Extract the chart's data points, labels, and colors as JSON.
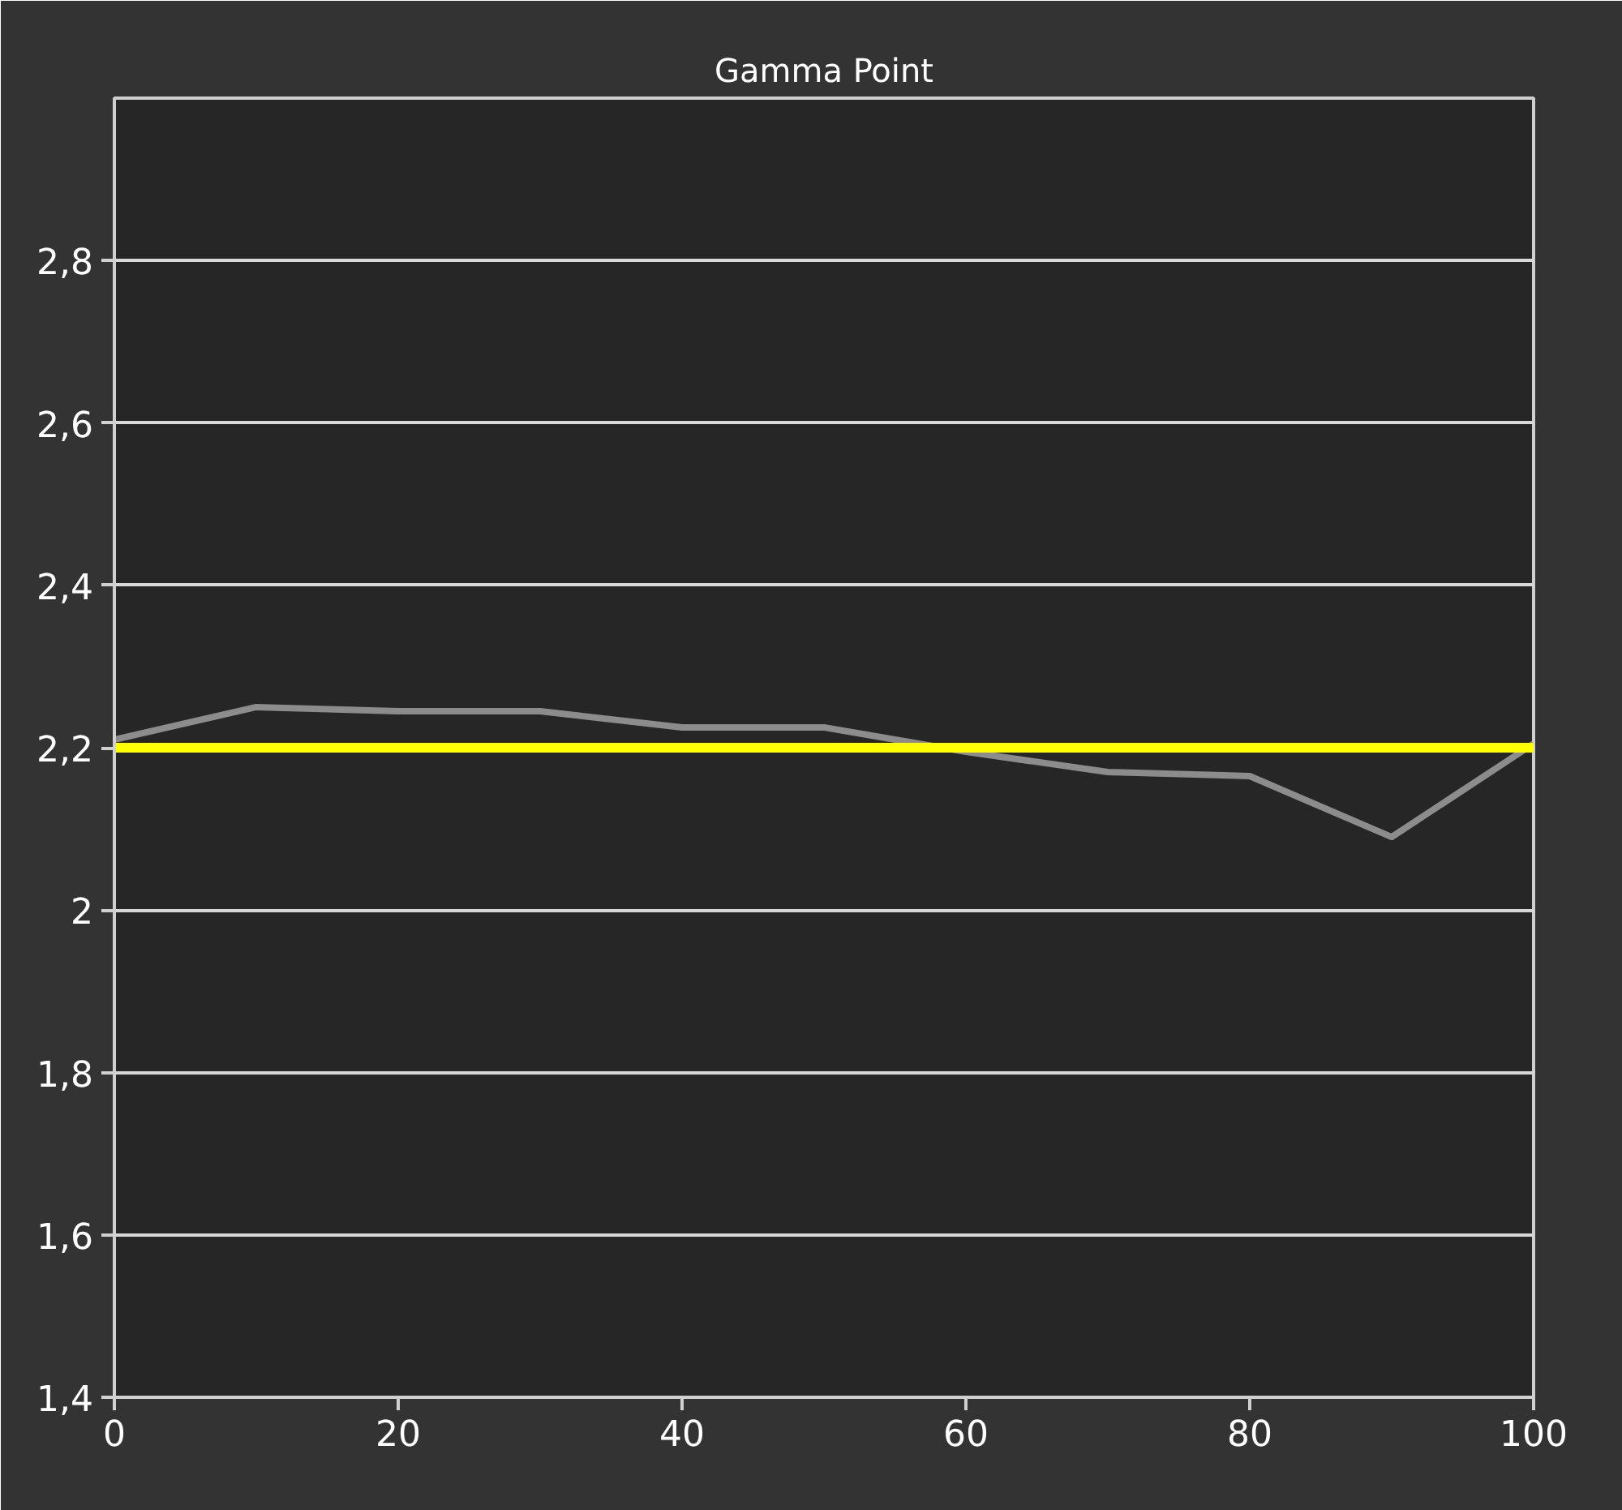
{
  "chart_data": {
    "type": "line",
    "title": "Gamma Point",
    "x": [
      0,
      10,
      20,
      30,
      40,
      50,
      60,
      70,
      80,
      90,
      100
    ],
    "series": [
      {
        "color": "#8c8c8c",
        "values": [
          2.21,
          2.25,
          2.245,
          2.245,
          2.225,
          2.225,
          2.195,
          2.17,
          2.165,
          2.09,
          2.205
        ]
      }
    ],
    "ref_lines": [
      {
        "axis": "y",
        "value": 2.2,
        "color": "#ffff00"
      }
    ],
    "xlim": [
      0,
      100
    ],
    "xticks": [
      0,
      20,
      40,
      60,
      80,
      100
    ],
    "ylim": [
      1.4,
      3.0
    ],
    "yticks": [
      {
        "value": 1.4,
        "label": "1,4"
      },
      {
        "value": 1.6,
        "label": "1,6"
      },
      {
        "value": 1.8,
        "label": "1,8"
      },
      2,
      {
        "value": 2.2,
        "label": "2,2"
      },
      {
        "value": 2.4,
        "label": "2,4"
      },
      {
        "value": 2.6,
        "label": "2,6"
      },
      {
        "value": 2.8,
        "label": "2,8"
      }
    ],
    "grid": "y",
    "line_style": "solid"
  }
}
